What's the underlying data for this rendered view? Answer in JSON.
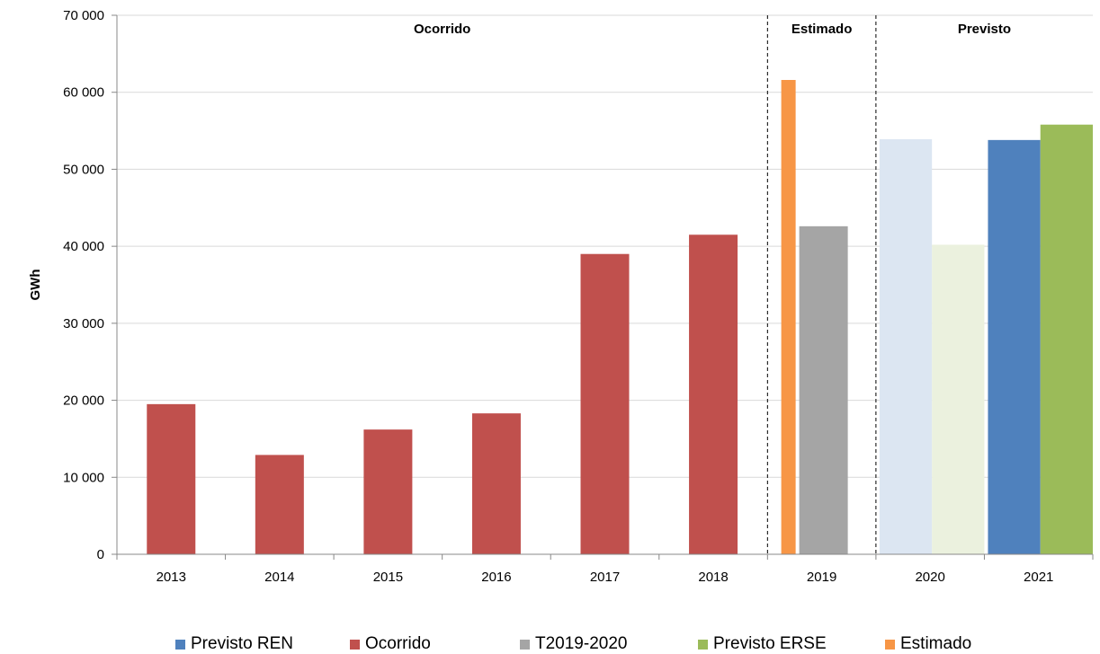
{
  "chart_data": {
    "type": "bar",
    "title": "",
    "xlabel": "",
    "ylabel": "GWh",
    "ylim": [
      0,
      70000
    ],
    "yticks": [
      0,
      10000,
      20000,
      30000,
      40000,
      50000,
      60000,
      70000
    ],
    "ytick_labels": [
      "0",
      "10 000",
      "20 000",
      "30 000",
      "40 000",
      "50 000",
      "60 000",
      "70 000"
    ],
    "grid": true,
    "legend_position": "bottom",
    "categories": [
      "2013",
      "2014",
      "2015",
      "2016",
      "2017",
      "2018",
      "2019",
      "2020",
      "2021"
    ],
    "sections": [
      {
        "label": "Ocorrido",
        "from": 0,
        "to": 5
      },
      {
        "label": "Estimado",
        "from": 6,
        "to": 6
      },
      {
        "label": "Previsto",
        "from": 7,
        "to": 8
      }
    ],
    "bars": [
      {
        "category": "2013",
        "series": "Ocorrido",
        "value": 19500,
        "color": "#C0504D"
      },
      {
        "category": "2014",
        "series": "Ocorrido",
        "value": 12900,
        "color": "#C0504D"
      },
      {
        "category": "2015",
        "series": "Ocorrido",
        "value": 16200,
        "color": "#C0504D"
      },
      {
        "category": "2016",
        "series": "Ocorrido",
        "value": 18300,
        "color": "#C0504D"
      },
      {
        "category": "2017",
        "series": "Ocorrido",
        "value": 39000,
        "color": "#C0504D"
      },
      {
        "category": "2018",
        "series": "Ocorrido",
        "value": 41500,
        "color": "#C0504D"
      },
      {
        "category": "2019",
        "series": "Estimado",
        "value": 61600,
        "color": "#F79646"
      },
      {
        "category": "2019",
        "series": "T2019-2020",
        "value": 42600,
        "color": "#A5A5A5"
      },
      {
        "category": "2020",
        "series": "Previsto REN",
        "value": 53900,
        "color": "#DCE6F2"
      },
      {
        "category": "2020",
        "series": "T2019-2020",
        "value": 40200,
        "color": "#EBF1DE"
      },
      {
        "category": "2021",
        "series": "Previsto REN",
        "value": 53800,
        "color": "#4F81BD"
      },
      {
        "category": "2021",
        "series": "Previsto ERSE",
        "value": 55800,
        "color": "#9BBB59"
      }
    ],
    "legend": [
      {
        "name": "Previsto REN",
        "color": "#4F81BD"
      },
      {
        "name": "Ocorrido",
        "color": "#C0504D"
      },
      {
        "name": "T2019-2020",
        "color": "#A5A5A5"
      },
      {
        "name": "Previsto ERSE",
        "color": "#9BBB59"
      },
      {
        "name": "Estimado",
        "color": "#F79646"
      }
    ]
  }
}
